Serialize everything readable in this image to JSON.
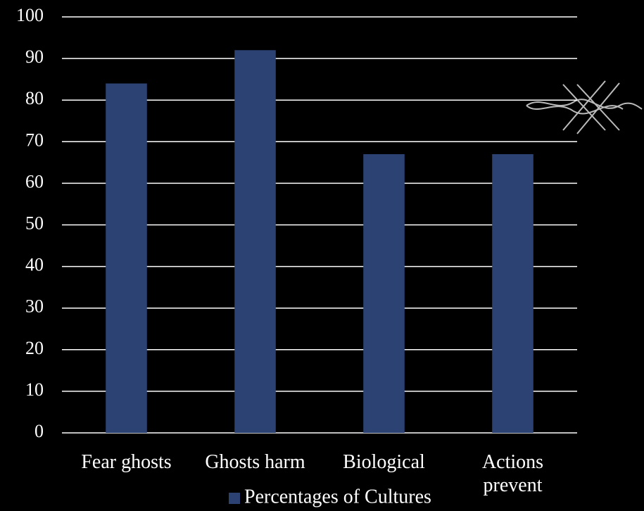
{
  "chart_data": {
    "type": "bar",
    "categories": [
      "Fear ghosts",
      "Ghosts harm",
      "Biological",
      "Actions prevent"
    ],
    "series": [
      {
        "name": "Percentages of Cultures",
        "color": "#2b4272",
        "values": [
          84,
          92,
          67,
          67
        ]
      }
    ],
    "ylim": [
      0,
      100
    ],
    "yticks": [
      0,
      10,
      20,
      30,
      40,
      50,
      60,
      70,
      80,
      90,
      100
    ],
    "grid": true,
    "legend": "bottom"
  }
}
